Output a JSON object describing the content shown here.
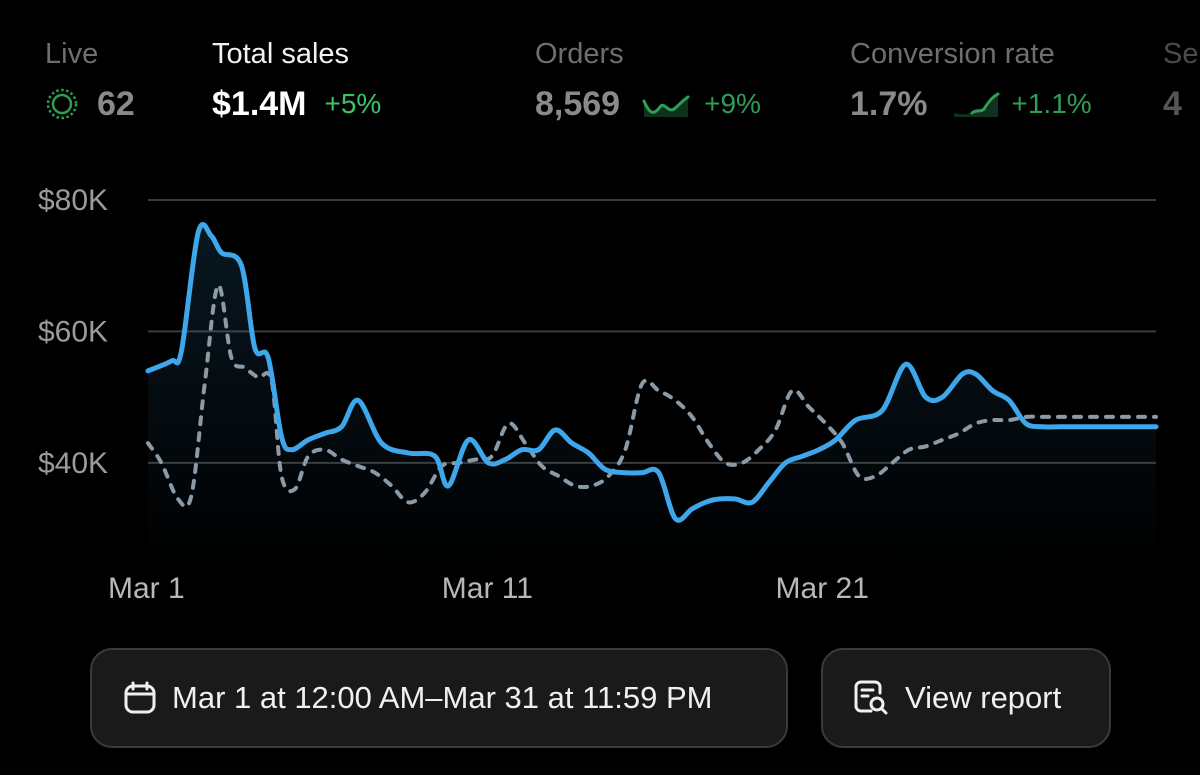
{
  "metrics": {
    "live": {
      "label": "Live",
      "value": "62",
      "icon": "live-pulse-icon"
    },
    "total_sales": {
      "label": "Total sales",
      "value": "$1.4M",
      "delta": "+5%"
    },
    "orders": {
      "label": "Orders",
      "value": "8,569",
      "delta": "+9%",
      "icon": "sparkline-icon"
    },
    "conversion": {
      "label": "Conversion rate",
      "value": "1.7%",
      "delta": "+1.1%",
      "icon": "sparkline-icon"
    },
    "clipped": {
      "label": "Se",
      "value": "4"
    }
  },
  "colors": {
    "current": "#3ea6ea",
    "previous": "#8a9aa6",
    "positive": "#3cc36a",
    "grid": "#3a3a3a"
  },
  "chart_data": {
    "type": "line",
    "x_tick_labels": [
      "Mar 1",
      "Mar 11",
      "Mar 21"
    ],
    "x_tick_days": [
      1,
      11,
      21
    ],
    "x_range": [
      1,
      31.2
    ],
    "y_ticks": [
      40000,
      60000,
      80000
    ],
    "y_tick_labels": [
      "$40K",
      "$60K",
      "$80K"
    ],
    "ylim": [
      24000,
      80000
    ],
    "grid": true,
    "series": [
      {
        "style": "solid",
        "fill": true,
        "x": [
          1,
          1.7,
          2,
          2.5,
          2.9,
          3.2,
          3.8,
          4.2,
          4.6,
          5,
          5.3,
          5.8,
          6.3,
          6.8,
          7.3,
          8,
          8.8,
          9.6,
          10,
          10.6,
          11.2,
          11.7,
          12.2,
          12.7,
          13.2,
          13.7,
          14.2,
          14.7,
          15.3,
          15.8,
          16.3,
          16.8,
          17.3,
          17.7,
          18.1,
          18.6,
          19.1,
          19.6,
          20.1,
          20.6,
          21.1,
          21.6,
          22.2,
          23,
          23.7,
          24.3,
          24.8,
          25.4,
          25.8,
          26.3,
          26.8,
          27.3,
          27.8,
          28.3,
          28.8,
          29.3,
          29.8,
          30.3,
          30.8,
          31.2
        ],
        "y": [
          54000,
          55500,
          57000,
          75000,
          74500,
          72000,
          70000,
          57500,
          56000,
          44000,
          42000,
          43500,
          44500,
          45500,
          49500,
          43000,
          41500,
          41000,
          36500,
          43500,
          40000,
          40500,
          42000,
          42000,
          45000,
          43000,
          41500,
          39000,
          38500,
          38500,
          38500,
          31500,
          33000,
          34000,
          34500,
          34500,
          34000,
          37000,
          40000,
          41000,
          42000,
          43500,
          46500,
          48000,
          55000,
          50000,
          50000,
          53500,
          53500,
          51000,
          49500,
          46000,
          45500,
          45500,
          45500,
          45500,
          45500,
          45500,
          45500,
          45500
        ]
      },
      {
        "style": "dashed",
        "fill": false,
        "x": [
          1,
          1.4,
          1.9,
          2.3,
          2.7,
          3.1,
          3.5,
          3.9,
          4.3,
          4.7,
          5,
          5.4,
          5.8,
          6.3,
          6.8,
          7.3,
          7.8,
          8.3,
          8.8,
          9.3,
          9.8,
          10.3,
          10.8,
          11.3,
          11.8,
          12.3,
          12.8,
          13.3,
          13.8,
          14.3,
          14.8,
          15.3,
          15.8,
          16.3,
          16.8,
          17.3,
          17.8,
          18.3,
          18.8,
          19.3,
          19.8,
          20.3,
          20.8,
          21.3,
          21.8,
          22.3,
          22.8,
          23.3,
          23.8,
          24.3,
          24.8,
          25.3,
          25.8,
          26.3,
          26.8,
          27.3,
          27.8,
          28.3,
          28.8,
          29.3,
          29.8,
          30.3,
          30.8,
          31.2
        ],
        "y": [
          43000,
          40000,
          34500,
          35000,
          52000,
          67000,
          56000,
          54500,
          53000,
          52500,
          38000,
          36000,
          41000,
          42000,
          40500,
          39500,
          38500,
          36500,
          34000,
          35500,
          39500,
          40000,
          40500,
          41000,
          46000,
          43000,
          39500,
          38000,
          36500,
          36500,
          38000,
          42000,
          52000,
          51000,
          49500,
          47000,
          43000,
          40000,
          40000,
          42000,
          45000,
          51000,
          48500,
          46000,
          43000,
          38000,
          38000,
          40000,
          42000,
          42500,
          43500,
          44500,
          46000,
          46500,
          46500,
          47000,
          47000,
          47000,
          47000,
          47000,
          47000,
          47000,
          47000,
          47000
        ]
      }
    ]
  },
  "buttons": {
    "date_range": {
      "label": "Mar 1 at 12:00 AM–Mar 31 at 11:59 PM",
      "icon": "calendar-icon"
    },
    "view_report": {
      "label": "View report",
      "icon": "report-search-icon"
    }
  }
}
